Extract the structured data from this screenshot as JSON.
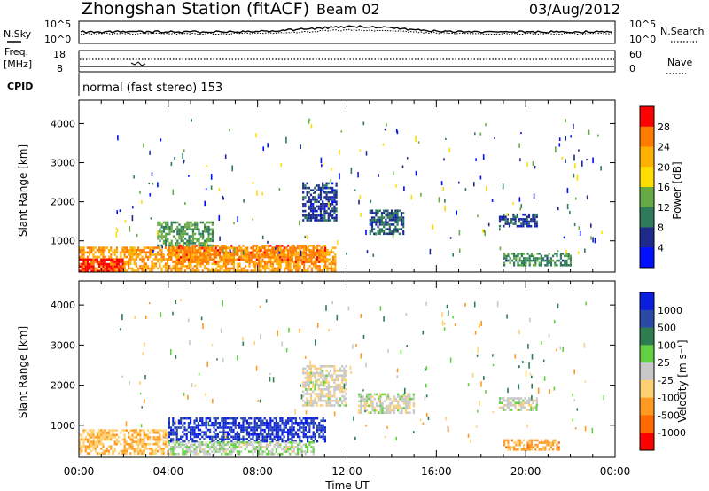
{
  "header": {
    "station_title": "Zhongshan Station (fitACF)",
    "beam": "Beam 02",
    "date": "03/Aug/2012"
  },
  "strips": {
    "nsky_label": "N.Sky",
    "nsky_top": "10^5",
    "nsky_bottom": "10^0",
    "nsearch_label": "N.Search",
    "freq_label_1": "Freq.",
    "freq_label_2": "[MHz]",
    "freq_top": "18",
    "freq_bottom": "8",
    "nave_top": "60",
    "nave_bottom": "0",
    "nave_label": "Nave",
    "cpid_label": "CPID",
    "cpid_text": "normal (fast stereo) 153"
  },
  "panels": {
    "ylabel": "Slant Range [km]",
    "xlabel": "Time UT",
    "y_ticks": [
      "4000",
      "3000",
      "2000",
      "1000"
    ],
    "x_ticks": [
      "00:00",
      "04:00",
      "08:00",
      "12:00",
      "16:00",
      "20:00",
      "00:00"
    ]
  },
  "colorbars": {
    "power_label": "Power [dB]",
    "power_ticks": [
      "28",
      "24",
      "20",
      "16",
      "12",
      "8",
      "4"
    ],
    "power_colors": [
      "#ff0000",
      "#ff7a00",
      "#ffb000",
      "#ffdd00",
      "#66aa44",
      "#2f7a5a",
      "#1c2a8c",
      "#0010ff"
    ],
    "velocity_label": "Velocity [m s⁻¹]",
    "velocity_ticks": [
      "1000",
      "500",
      "100",
      "25",
      "-25",
      "-100",
      "-500",
      "-1000"
    ],
    "velocity_colors": [
      "#0a1ee0",
      "#2a4aa8",
      "#2e7d50",
      "#62d040",
      "#c8c8c8",
      "#ffd070",
      "#ff9a20",
      "#ff6a00",
      "#ff0000"
    ]
  },
  "chart_data": [
    {
      "type": "heatmap",
      "title": "",
      "xlabel": "Time UT",
      "ylabel": "Slant Range [km]",
      "xlim": [
        "00:00",
        "24:00"
      ],
      "ylim": [
        200,
        4600
      ],
      "colorbar": "Power [dB]",
      "scale_range": [
        0,
        30
      ],
      "regions": [
        {
          "time_start": 0.0,
          "time_end": 11.5,
          "range_start": 250,
          "range_end": 850,
          "value": 22
        },
        {
          "time_start": 0.0,
          "time_end": 2.0,
          "range_start": 250,
          "range_end": 550,
          "value": 28
        },
        {
          "time_start": 4.0,
          "time_end": 11.0,
          "range_start": 450,
          "range_end": 900,
          "value": 24
        },
        {
          "time_start": 3.5,
          "time_end": 6.0,
          "range_start": 900,
          "range_end": 1500,
          "value": 12
        },
        {
          "time_start": 10.0,
          "time_end": 11.5,
          "range_start": 1500,
          "range_end": 2500,
          "value": 6
        },
        {
          "time_start": 13.0,
          "time_end": 14.5,
          "range_start": 1200,
          "range_end": 1800,
          "value": 8
        },
        {
          "time_start": 18.8,
          "time_end": 20.5,
          "range_start": 1400,
          "range_end": 1700,
          "value": 6
        },
        {
          "time_start": 19.0,
          "time_end": 22.0,
          "range_start": 400,
          "range_end": 700,
          "value": 10
        }
      ]
    },
    {
      "type": "heatmap",
      "title": "",
      "xlabel": "Time UT",
      "ylabel": "Slant Range [km]",
      "xlim": [
        "00:00",
        "24:00"
      ],
      "ylim": [
        200,
        4600
      ],
      "colorbar": "Velocity [m s⁻¹]",
      "scale_range": [
        -1000,
        1000
      ],
      "regions": [
        {
          "time_start": 0.0,
          "time_end": 4.0,
          "range_start": 300,
          "range_end": 900,
          "value": -300
        },
        {
          "time_start": 4.0,
          "time_end": 11.0,
          "range_start": 600,
          "range_end": 1200,
          "value": 800
        },
        {
          "time_start": 4.0,
          "time_end": 10.5,
          "range_start": 300,
          "range_end": 600,
          "value": 60
        },
        {
          "time_start": 10.0,
          "time_end": 12.0,
          "range_start": 1500,
          "range_end": 2500,
          "value": -60
        },
        {
          "time_start": 12.5,
          "time_end": 15.0,
          "range_start": 1300,
          "range_end": 1800,
          "value": 0
        },
        {
          "time_start": 18.8,
          "time_end": 20.5,
          "range_start": 1400,
          "range_end": 1700,
          "value": 0
        },
        {
          "time_start": 19.0,
          "time_end": 21.5,
          "range_start": 400,
          "range_end": 650,
          "value": -400
        }
      ]
    }
  ]
}
